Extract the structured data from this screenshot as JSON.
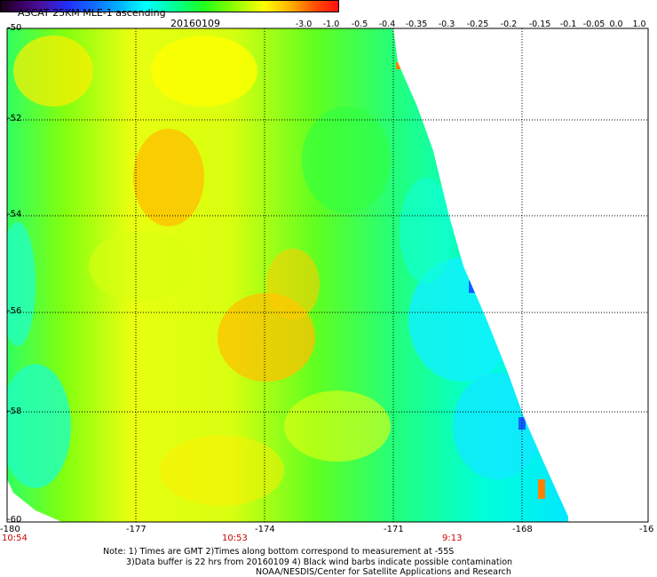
{
  "header": {
    "title": "ASCAT 25KM MLE-1 ascending",
    "date": "20160109"
  },
  "colorbar": {
    "labels": [
      "-3.0",
      "-1.0",
      "-0.5",
      "-0.4",
      "-0.35",
      "-0.3",
      "-0.25",
      "-0.2",
      "-0.15",
      "-0.1",
      "-0.05",
      "0.0",
      "1.0"
    ]
  },
  "map": {
    "lat_labels": [
      "-50",
      "-52",
      "-54",
      "-56",
      "-58",
      "-60"
    ],
    "lon_labels": [
      "-180",
      "-177",
      "-174",
      "-171",
      "-168",
      "-16"
    ],
    "time_labels": [
      "10:54",
      "10:53",
      "9:13"
    ],
    "colors": {
      "gridline": "#000000",
      "time_label": "#d00000"
    }
  },
  "footer": {
    "note_line1": "Note: 1) Times are GMT 2)Times along bottom correspond to measurement at -55S",
    "note_line2": "3)Data buffer is 22 hrs from 20160109 4) Black wind barbs indicate possible contamination",
    "note_line3": "NOAA/NESDIS/Center for Satellite Applications and Research"
  }
}
